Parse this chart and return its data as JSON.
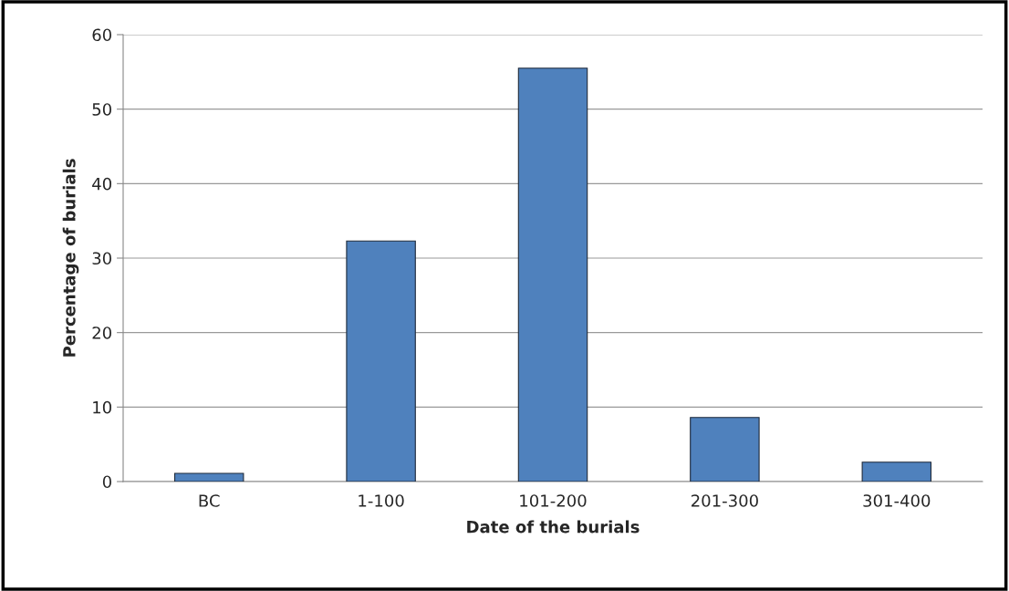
{
  "chart_data": {
    "type": "bar",
    "xlabel": "Date of the burials",
    "ylabel": "Percentage of burials",
    "categories": [
      "BC",
      "1-100",
      "101-200",
      "201-300",
      "301-400"
    ],
    "values": [
      1.1,
      32.3,
      55.5,
      8.6,
      2.6
    ],
    "color": "#4f81bd",
    "ylim": [
      0,
      60
    ],
    "yticks": [
      0,
      10,
      20,
      30,
      40,
      50,
      60
    ],
    "grid": "y"
  }
}
